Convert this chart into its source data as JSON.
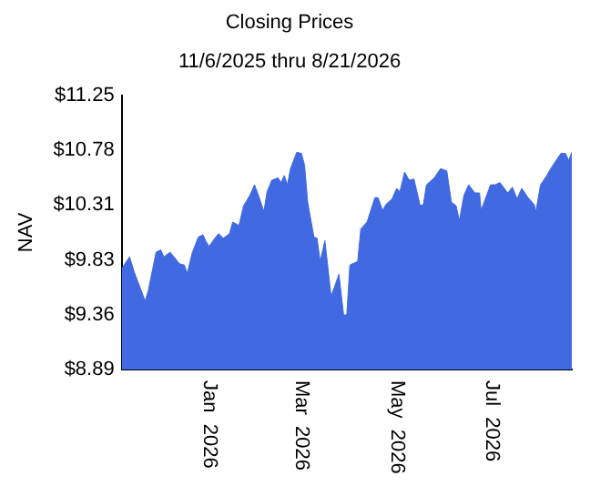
{
  "chart_data": {
    "type": "area",
    "title": "Closing Prices",
    "subtitle": "11/6/2025 thru 8/21/2026",
    "ylabel": "NAV",
    "x": [
      "2025-11-06",
      "2025-11-11",
      "2025-11-14",
      "2025-11-21",
      "2025-11-23",
      "2025-11-28",
      "2025-12-01",
      "2025-12-03",
      "2025-12-07",
      "2025-12-13",
      "2025-12-16",
      "2025-12-18",
      "2025-12-21",
      "2025-12-25",
      "2025-12-28",
      "2025-12-30",
      "2026-01-01",
      "2026-01-04",
      "2026-01-07",
      "2026-01-10",
      "2026-01-14",
      "2026-01-16",
      "2026-01-20",
      "2026-01-23",
      "2026-01-27",
      "2026-01-30",
      "2026-02-02",
      "2026-02-05",
      "2026-02-07",
      "2026-02-10",
      "2026-02-14",
      "2026-02-16",
      "2026-02-18",
      "2026-02-20",
      "2026-02-22",
      "2026-02-26",
      "2026-03-01",
      "2026-03-03",
      "2026-03-05",
      "2026-03-09",
      "2026-03-11",
      "2026-03-13",
      "2026-03-16",
      "2026-03-20",
      "2026-03-25",
      "2026-03-28",
      "2026-03-30",
      "2026-04-01",
      "2026-04-06",
      "2026-04-08",
      "2026-04-12",
      "2026-04-17",
      "2026-04-19",
      "2026-04-22",
      "2026-04-24",
      "2026-04-28",
      "2026-05-01",
      "2026-05-03",
      "2026-05-06",
      "2026-05-09",
      "2026-05-12",
      "2026-05-16",
      "2026-05-18",
      "2026-05-20",
      "2026-05-25",
      "2026-05-29",
      "2026-06-02",
      "2026-06-05",
      "2026-06-08",
      "2026-06-10",
      "2026-06-13",
      "2026-06-16",
      "2026-06-20",
      "2026-06-23",
      "2026-06-24",
      "2026-06-30",
      "2026-07-03",
      "2026-07-06",
      "2026-07-11",
      "2026-07-14",
      "2026-07-17",
      "2026-07-20",
      "2026-07-24",
      "2026-07-28",
      "2026-07-29",
      "2026-08-01",
      "2026-08-05",
      "2026-08-08",
      "2026-08-14",
      "2026-08-17",
      "2026-08-19",
      "2026-08-21"
    ],
    "series": [
      {
        "color": "#4169e1",
        "values": [
          9.76,
          9.86,
          9.73,
          9.48,
          9.57,
          9.9,
          9.92,
          9.86,
          9.9,
          9.8,
          9.79,
          9.72,
          9.89,
          10.03,
          10.05,
          9.99,
          9.95,
          10.01,
          10.06,
          10.02,
          10.06,
          10.16,
          10.13,
          10.3,
          10.39,
          10.48,
          10.37,
          10.25,
          10.42,
          10.52,
          10.54,
          10.5,
          10.56,
          10.48,
          10.62,
          10.76,
          10.75,
          10.65,
          10.33,
          10.03,
          10.02,
          9.82,
          10.0,
          9.52,
          9.71,
          9.36,
          9.36,
          9.79,
          9.82,
          10.1,
          10.16,
          10.37,
          10.37,
          10.26,
          10.31,
          10.36,
          10.45,
          10.42,
          10.59,
          10.52,
          10.53,
          10.3,
          10.31,
          10.48,
          10.54,
          10.62,
          10.6,
          10.33,
          10.3,
          10.17,
          10.39,
          10.48,
          10.41,
          10.41,
          10.26,
          10.48,
          10.48,
          10.5,
          10.41,
          10.46,
          10.36,
          10.45,
          10.37,
          10.31,
          10.25,
          10.48,
          10.56,
          10.63,
          10.75,
          10.75,
          10.69,
          10.76
        ]
      }
    ],
    "xlim": [
      "2025-11-06",
      "2026-08-21"
    ],
    "xticks": [
      {
        "value": "2026-01-01",
        "label": "Jan  2026"
      },
      {
        "value": "2026-03-01",
        "label": "Mar  2026"
      },
      {
        "value": "2026-05-01",
        "label": "May  2026"
      },
      {
        "value": "2026-07-01",
        "label": "Jul  2026"
      }
    ],
    "ylim": [
      8.89,
      11.25
    ],
    "yticks": [
      {
        "value": 8.89,
        "label": "$8.89"
      },
      {
        "value": 9.36,
        "label": "$9.36"
      },
      {
        "value": 9.83,
        "label": "$9.83"
      },
      {
        "value": 10.31,
        "label": "$10.31"
      },
      {
        "value": 10.78,
        "label": "$10.78"
      },
      {
        "value": 11.25,
        "label": "$11.25"
      }
    ],
    "grid": false,
    "legend": false
  }
}
